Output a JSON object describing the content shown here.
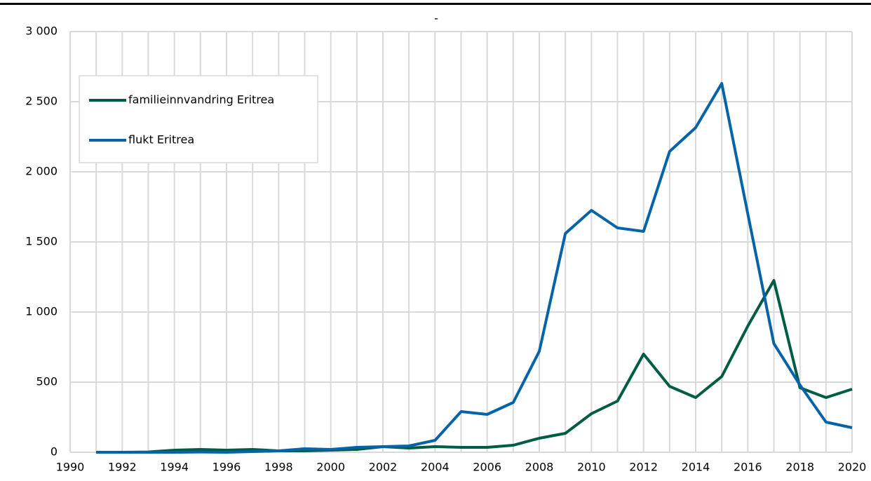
{
  "chart_data": {
    "type": "line",
    "title": "-",
    "x": [
      1991,
      1992,
      1993,
      1994,
      1995,
      1996,
      1997,
      1998,
      1999,
      2000,
      2001,
      2002,
      2003,
      2004,
      2005,
      2006,
      2007,
      2008,
      2009,
      2010,
      2011,
      2012,
      2013,
      2014,
      2015,
      2016,
      2017,
      2018,
      2019,
      2020
    ],
    "series": [
      {
        "name": "familieinnvandring Eritrea",
        "color": "#005c45",
        "values": [
          0,
          0,
          2,
          15,
          20,
          15,
          20,
          10,
          10,
          15,
          20,
          40,
          30,
          40,
          35,
          35,
          50,
          100,
          135,
          275,
          365,
          700,
          470,
          390,
          540,
          900,
          1225,
          460,
          390,
          450
        ]
      },
      {
        "name": "flukt Eritrea",
        "color": "#0563a8",
        "values": [
          0,
          0,
          0,
          0,
          2,
          0,
          5,
          10,
          25,
          20,
          35,
          40,
          45,
          85,
          290,
          270,
          355,
          720,
          1560,
          1725,
          1600,
          1575,
          2145,
          2315,
          2630,
          1700,
          775,
          480,
          215,
          175
        ]
      }
    ],
    "xlim": [
      1990,
      2020
    ],
    "xticks": [
      1990,
      1992,
      1994,
      1996,
      1998,
      2000,
      2002,
      2004,
      2006,
      2008,
      2010,
      2012,
      2014,
      2016,
      2018,
      2020
    ],
    "ylim": [
      0,
      3000
    ],
    "yticks": [
      0,
      500,
      {
        "value": 1000,
        "label": "1 000"
      },
      {
        "value": 1500,
        "label": "1 500"
      },
      {
        "value": 2000,
        "label": "2 000"
      },
      {
        "value": 2500,
        "label": "2 500"
      },
      {
        "value": 3000,
        "label": "3 000"
      }
    ],
    "grid": true,
    "legend": "upper left"
  }
}
